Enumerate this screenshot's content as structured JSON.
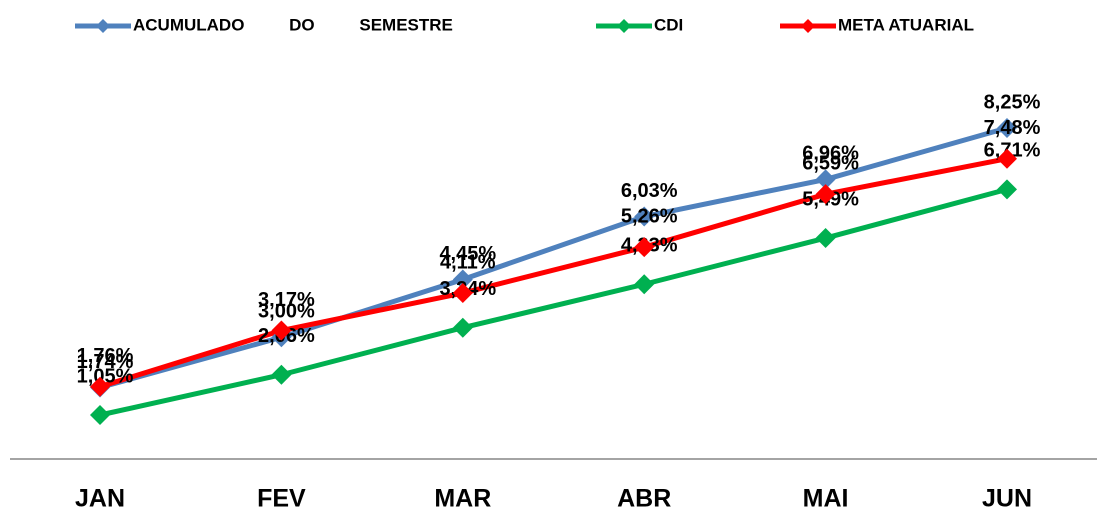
{
  "chart_data": {
    "type": "line",
    "categories": [
      "JAN",
      "FEV",
      "MAR",
      "ABR",
      "MAI",
      "JUN"
    ],
    "series": [
      {
        "name": "ACUMULADO DO SEMESTRE",
        "color": "#4f81bd",
        "values": [
          1.74,
          3.0,
          4.45,
          6.03,
          6.96,
          8.25
        ],
        "value_labels": [
          "1,74%",
          "3,00%",
          "4,45%",
          "6,03%",
          "6,96%",
          "8,25%"
        ]
      },
      {
        "name": "CDI",
        "color": "#00b050",
        "values": [
          1.05,
          2.06,
          3.24,
          4.33,
          5.49,
          6.71
        ],
        "value_labels": [
          "1,05%",
          "2,06%",
          "3,24%",
          "4,33%",
          "5,49%",
          "6,71%"
        ]
      },
      {
        "name": "META ATUARIAL",
        "color": "#ff0000",
        "values": [
          1.76,
          3.17,
          4.11,
          5.26,
          6.59,
          7.48
        ],
        "value_labels": [
          "1,76%",
          "3,17%",
          "4,11%",
          "5,26%",
          "6,59%",
          "7,48%"
        ]
      }
    ],
    "legend": "top"
  }
}
